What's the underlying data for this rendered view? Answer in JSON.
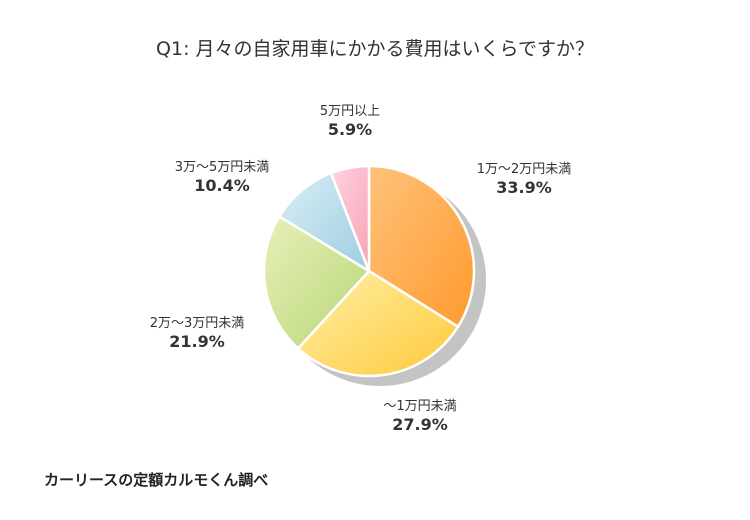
{
  "chart_data": {
    "type": "pie",
    "title": "Q1: 月々の自家用車にかかる費用はいくらですか？",
    "slices": [
      {
        "label": "1万〜2万円未満",
        "value": 33.9,
        "value_label": "33.9%",
        "color_light": "#ffc27a",
        "color_dark": "#ff9a2e"
      },
      {
        "label": "〜1万円未満",
        "value": 27.9,
        "value_label": "27.9%",
        "color_light": "#fff0a8",
        "color_dark": "#ffc93a"
      },
      {
        "label": "2万〜3万円未満",
        "value": 21.9,
        "value_label": "21.9%",
        "color_light": "#e6f0b8",
        "color_dark": "#b9d677"
      },
      {
        "label": "3万〜5万円未満",
        "value": 10.4,
        "value_label": "10.4%",
        "color_light": "#d8eef5",
        "color_dark": "#9fcde1"
      },
      {
        "label": "5万円以上",
        "value": 5.9,
        "value_label": "5.9%",
        "color_light": "#ffd3df",
        "color_dark": "#f7a3b8"
      }
    ],
    "start_angle_deg": 0,
    "direction": "clockwise"
  },
  "credit": "カーリースの定額カルモくん調べ"
}
